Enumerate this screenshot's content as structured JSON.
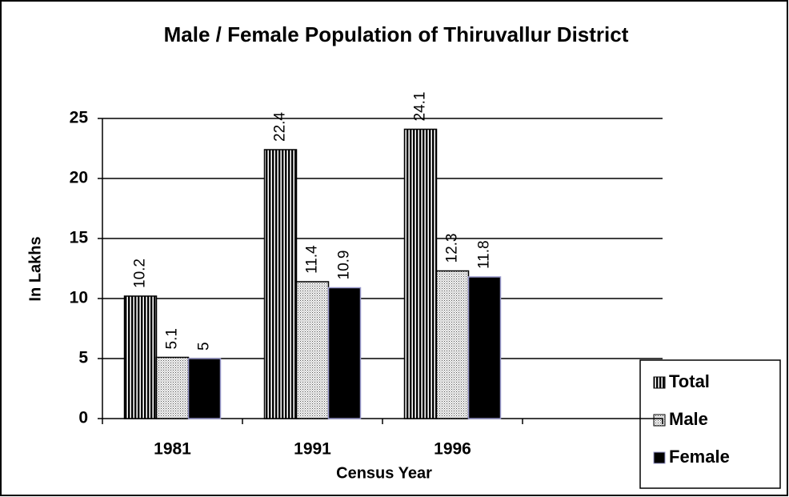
{
  "chart_data": {
    "type": "bar",
    "title": "Male / Female Population of Thiruvallur District",
    "x_label": "Census Year",
    "y_label": "In Lakhs",
    "categories": [
      "1981",
      "1991",
      "1996",
      null
    ],
    "series": [
      {
        "name": "Total",
        "color": "#000000",
        "pattern": "vertical-stripes",
        "values": [
          10.2,
          22.4,
          24.1,
          null
        ]
      },
      {
        "name": "Male",
        "color": "#000000",
        "pattern": "dots",
        "values": [
          5.1,
          11.4,
          12.3,
          null
        ]
      },
      {
        "name": "Female",
        "color": "#000000",
        "pattern": "solid",
        "values": [
          5,
          10.9,
          11.8,
          null
        ]
      }
    ],
    "ylim": [
      0,
      25
    ],
    "yticks": [
      0,
      5,
      10,
      15,
      20,
      25
    ],
    "grid": true,
    "legend": "lower right"
  }
}
